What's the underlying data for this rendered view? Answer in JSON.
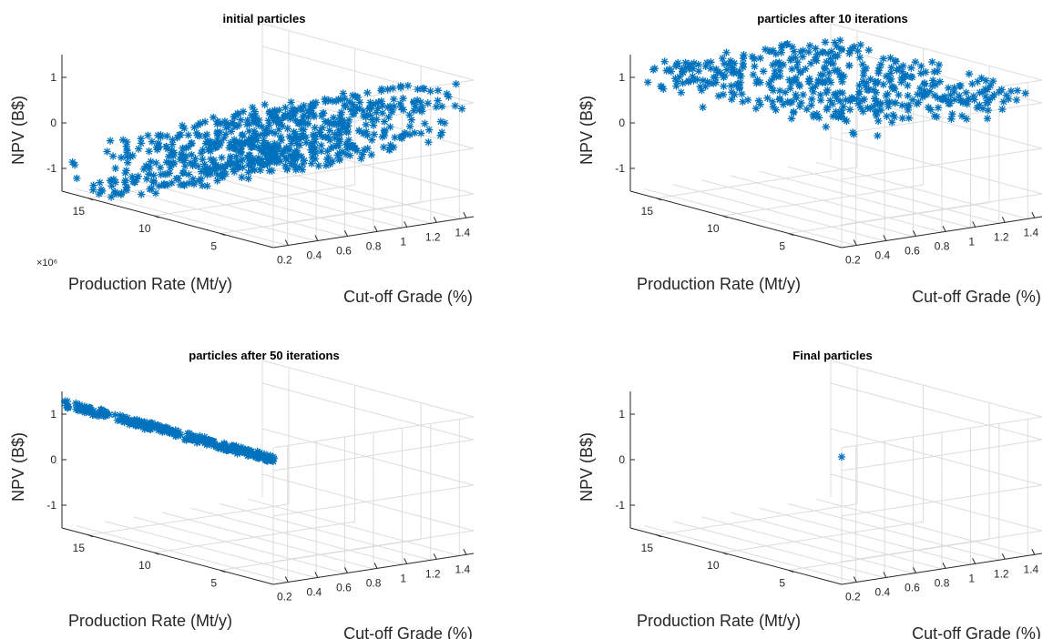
{
  "colors": {
    "marker": "#0072BD",
    "grid": "#dcdcdc",
    "axis": "#262626"
  },
  "chart_data": [
    {
      "type": "scatter",
      "title": "initial particles",
      "xlabel": "Cut-off Grade (%)",
      "ylabel": "Production Rate (Mt/y)",
      "zlabel": "NPV (B$)",
      "y_exponent": "×10⁶",
      "x_ticks": [
        "0.2",
        "0.4",
        "0.6",
        "0.8",
        "1",
        "1.2",
        "1.4"
      ],
      "y_ticks": [
        "15",
        "10",
        "5"
      ],
      "z_ticks": [
        "1",
        "0",
        "-1"
      ],
      "xlim": [
        0.1,
        1.45
      ],
      "ylim": [
        1,
        17
      ],
      "zlim": [
        -1.5,
        1.5
      ],
      "grid": true,
      "marker": "asterisk",
      "point_cloud": {
        "count": 700,
        "cutoff_grade_range": [
          0.1,
          1.45
        ],
        "production_rate_range": [
          1,
          17
        ],
        "npv_range": [
          -1.5,
          1.5
        ]
      }
    },
    {
      "type": "scatter",
      "title": "particles after 10 iterations",
      "xlabel": "Cut-off Grade (%)",
      "ylabel": "Production Rate (Mt/y)",
      "zlabel": "NPV (B$)",
      "x_ticks": [
        "0.2",
        "0.4",
        "0.6",
        "0.8",
        "1",
        "1.2",
        "1.4"
      ],
      "y_ticks": [
        "15",
        "10",
        "5"
      ],
      "z_ticks": [
        "1",
        "0",
        "-1"
      ],
      "xlim": [
        0.1,
        1.45
      ],
      "ylim": [
        1,
        17
      ],
      "zlim": [
        -1.5,
        1.5
      ],
      "grid": true,
      "marker": "asterisk",
      "point_cloud": {
        "count": 450,
        "cutoff_grade_range": [
          0.1,
          1.45
        ],
        "production_rate_range": [
          1,
          17
        ],
        "npv_range": [
          0.6,
          1.3
        ]
      }
    },
    {
      "type": "scatter",
      "title": "particles after 50 iterations",
      "xlabel": "Cut-off Grade (%)",
      "ylabel": "Production Rate (Mt/y)",
      "zlabel": "NPV (B$)",
      "x_ticks": [
        "0.2",
        "0.4",
        "0.6",
        "0.8",
        "1",
        "1.2",
        "1.4"
      ],
      "y_ticks": [
        "15",
        "10",
        "5"
      ],
      "z_ticks": [
        "1",
        "0",
        "-1"
      ],
      "xlim": [
        0.1,
        1.45
      ],
      "ylim": [
        1,
        17
      ],
      "zlim": [
        -1.5,
        1.5
      ],
      "grid": true,
      "marker": "asterisk",
      "point_cloud": {
        "count": 260,
        "cutoff_grade": 0.1,
        "production_rate_range": [
          1,
          17
        ],
        "npv_range": [
          1.15,
          1.3
        ]
      }
    },
    {
      "type": "scatter",
      "title": "Final particles",
      "xlabel": "Cut-off Grade (%)",
      "ylabel": "Production Rate (Mt/y)",
      "zlabel": "NPV (B$)",
      "x_ticks": [
        "0.2",
        "0.4",
        "0.6",
        "0.8",
        "1",
        "1.2",
        "1.4"
      ],
      "y_ticks": [
        "15",
        "10",
        "5"
      ],
      "z_ticks": [
        "1",
        "0",
        "-1"
      ],
      "xlim": [
        0.1,
        1.45
      ],
      "ylim": [
        1,
        17
      ],
      "zlim": [
        -1.5,
        1.5
      ],
      "grid": true,
      "marker": "asterisk",
      "points": [
        {
          "x": 0.1,
          "y": 1,
          "z": 1.3
        }
      ]
    }
  ]
}
